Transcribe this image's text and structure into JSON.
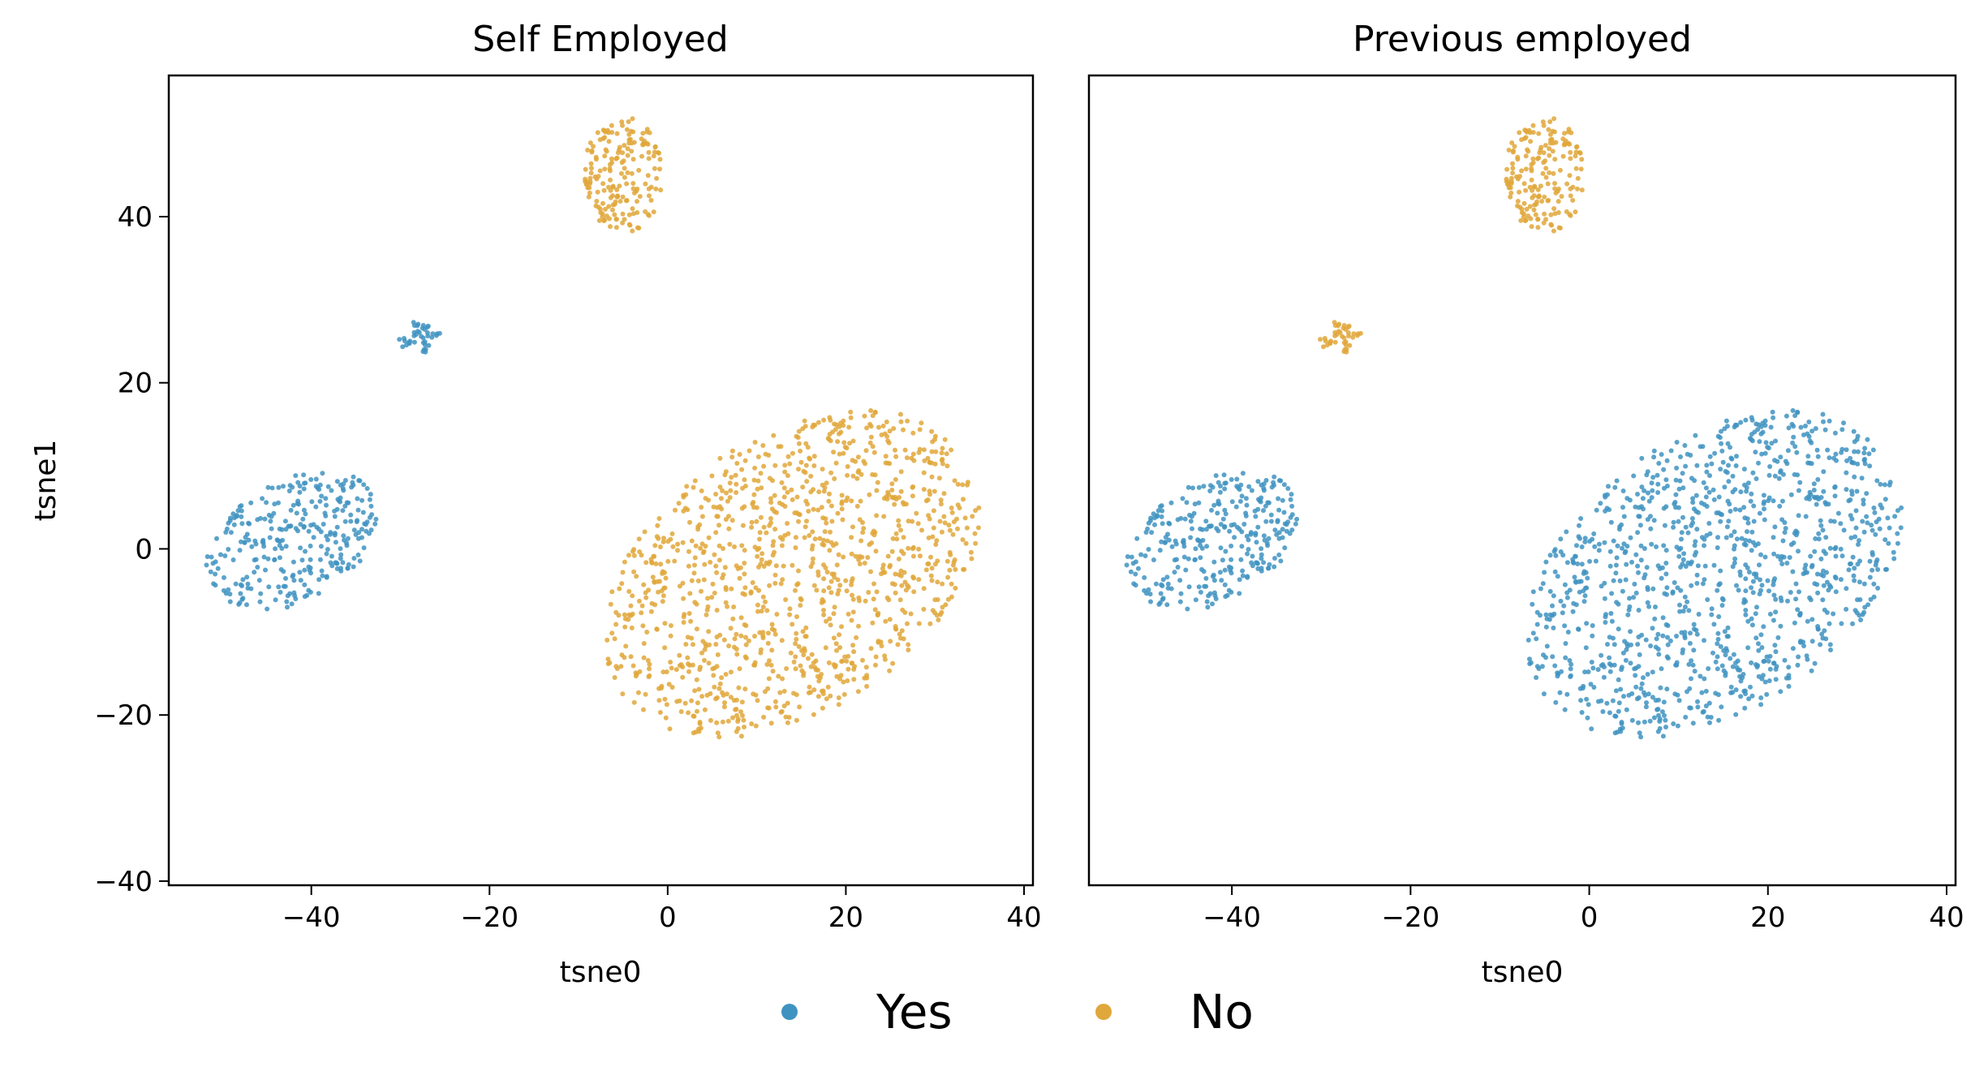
{
  "colors": {
    "yes": "#3f93c1",
    "no": "#e0a73a"
  },
  "legend": {
    "yes_label": "Yes",
    "no_label": "No"
  },
  "chart_data": [
    {
      "type": "scatter",
      "title": "Self Employed",
      "xlabel": "tsne0",
      "ylabel": "tsne1",
      "xlim": [
        -56,
        41
      ],
      "ylim": [
        -40.5,
        57
      ],
      "xticks": [
        -40,
        -20,
        0,
        20,
        40
      ],
      "yticks": [
        -40,
        -20,
        0,
        20,
        40
      ],
      "tick_labels_x": [
        "−40",
        "−20",
        "0",
        "20",
        "40"
      ],
      "tick_labels_y": [
        "−40",
        "−20",
        "0",
        "20",
        "40"
      ],
      "grid": false,
      "clusters": [
        {
          "series": "Yes",
          "shape": "ellipse",
          "cx": -42,
          "cy": 1,
          "rx": 11,
          "ry": 7,
          "angle": 35,
          "n": 300
        },
        {
          "series": "Yes",
          "shape": "ellipse",
          "cx": -28,
          "cy": 25.5,
          "rx": 2.5,
          "ry": 2,
          "angle": 0,
          "n": 40
        },
        {
          "series": "No",
          "shape": "ellipse",
          "cx": -5,
          "cy": 45,
          "rx": 4.5,
          "ry": 7,
          "angle": 0,
          "n": 180
        },
        {
          "series": "No",
          "shape": "ellipse",
          "cx": 14,
          "cy": -3,
          "rx": 24,
          "ry": 16,
          "angle": 40,
          "n": 1100
        }
      ]
    },
    {
      "type": "scatter",
      "title": "Previous employed",
      "xlabel": "tsne0",
      "ylabel": "",
      "xlim": [
        -56,
        41
      ],
      "ylim": [
        -40.5,
        57
      ],
      "xticks": [
        -40,
        -20,
        0,
        20,
        40
      ],
      "tick_labels_x": [
        "−40",
        "−20",
        "0",
        "20",
        "40"
      ],
      "grid": false,
      "clusters": [
        {
          "series": "Yes",
          "shape": "ellipse",
          "cx": -42,
          "cy": 1,
          "rx": 11,
          "ry": 7,
          "angle": 35,
          "n": 300
        },
        {
          "series": "No",
          "shape": "ellipse",
          "cx": -28,
          "cy": 25.5,
          "rx": 2.5,
          "ry": 2,
          "angle": 0,
          "n": 40
        },
        {
          "series": "No",
          "shape": "ellipse",
          "cx": -5,
          "cy": 45,
          "rx": 4.5,
          "ry": 7,
          "angle": 0,
          "n": 180
        },
        {
          "series": "Yes",
          "shape": "ellipse",
          "cx": 14,
          "cy": -3,
          "rx": 24,
          "ry": 16,
          "angle": 40,
          "n": 1100
        }
      ]
    }
  ]
}
